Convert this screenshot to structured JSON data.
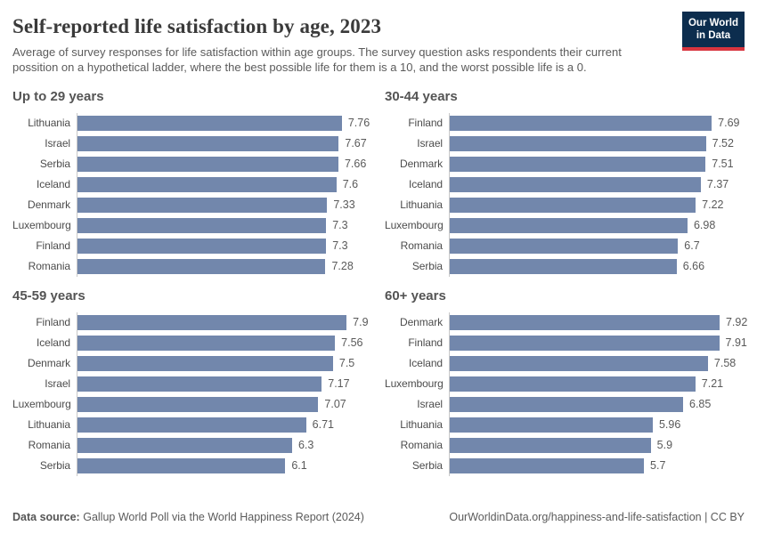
{
  "header": {
    "title": "Self-reported life satisfaction by age, 2023",
    "subtitle": "Average of survey responses for life satisfaction within age groups. The survey question asks respondents their current possition on a hypothetical ladder, where the best possible life for them is a 10, and the worst possible life is a 0.",
    "logo": {
      "line1": "Our World",
      "line2": "in Data",
      "bg_color": "#0c2d4e",
      "accent_color": "#d8353f"
    }
  },
  "chart_data": {
    "type": "bar",
    "orientation": "horizontal",
    "value_range": [
      0,
      8
    ],
    "grid": false,
    "bar_color": "#7287ac",
    "axis_color": "#c8c8c8",
    "panels": [
      {
        "title": "Up to 29 years",
        "categories": [
          "Lithuania",
          "Israel",
          "Serbia",
          "Iceland",
          "Denmark",
          "Luxembourg",
          "Finland",
          "Romania"
        ],
        "values": [
          7.76,
          7.67,
          7.66,
          7.6,
          7.33,
          7.3,
          7.3,
          7.28
        ],
        "value_labels": [
          "7.76",
          "7.67",
          "7.66",
          "7.6",
          "7.33",
          "7.3",
          "7.3",
          "7.28"
        ]
      },
      {
        "title": "30-44 years",
        "categories": [
          "Finland",
          "Israel",
          "Denmark",
          "Iceland",
          "Lithuania",
          "Luxembourg",
          "Romania",
          "Serbia"
        ],
        "values": [
          7.69,
          7.52,
          7.51,
          7.37,
          7.22,
          6.98,
          6.7,
          6.66
        ],
        "value_labels": [
          "7.69",
          "7.52",
          "7.51",
          "7.37",
          "7.22",
          "6.98",
          "6.7",
          "6.66"
        ]
      },
      {
        "title": "45-59 years",
        "categories": [
          "Finland",
          "Iceland",
          "Denmark",
          "Israel",
          "Luxembourg",
          "Lithuania",
          "Romania",
          "Serbia"
        ],
        "values": [
          7.9,
          7.56,
          7.5,
          7.17,
          7.07,
          6.71,
          6.3,
          6.1
        ],
        "value_labels": [
          "7.9",
          "7.56",
          "7.5",
          "7.17",
          "7.07",
          "6.71",
          "6.3",
          "6.1"
        ]
      },
      {
        "title": "60+ years",
        "categories": [
          "Denmark",
          "Finland",
          "Iceland",
          "Luxembourg",
          "Israel",
          "Lithuania",
          "Romania",
          "Serbia"
        ],
        "values": [
          7.92,
          7.91,
          7.58,
          7.21,
          6.85,
          5.96,
          5.9,
          5.7
        ],
        "value_labels": [
          "7.92",
          "7.91",
          "7.58",
          "7.21",
          "6.85",
          "5.96",
          "5.9",
          "5.7"
        ]
      }
    ]
  },
  "footer": {
    "source_label": "Data source:",
    "source_text": "Gallup World Poll via the World Happiness Report (2024)",
    "url_text": "OurWorldinData.org/happiness-and-life-satisfaction | CC BY"
  }
}
